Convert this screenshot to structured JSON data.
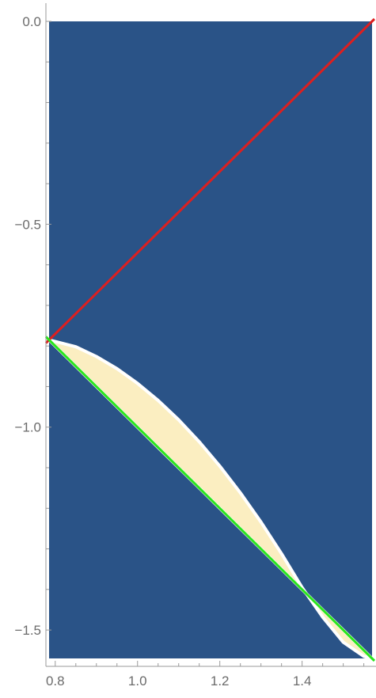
{
  "chart_data": {
    "type": "area",
    "title": "",
    "xlabel": "",
    "ylabel": "",
    "xlim": [
      0.785,
      1.57
    ],
    "ylim": [
      -1.57,
      0.0
    ],
    "x_ticks": [
      {
        "value": 0.8,
        "label": "0.8"
      },
      {
        "value": 1.0,
        "label": "1.0"
      },
      {
        "value": 1.2,
        "label": "1.2"
      },
      {
        "value": 1.4,
        "label": "1.4"
      }
    ],
    "y_ticks": [
      {
        "value": 0.0,
        "label": "0.0"
      },
      {
        "value": -0.5,
        "label": "−0.5"
      },
      {
        "value": -1.0,
        "label": "−1.0"
      },
      {
        "value": -1.5,
        "label": "−1.5"
      }
    ],
    "x_minor_step": 0.05,
    "y_minor_step": 0.1,
    "grid": false,
    "legend": "none",
    "colors": {
      "background_region": "#2a5387",
      "highlight_region": "#fbeec1",
      "region_edge": "#ffffff",
      "red_line": "#dd1f1f",
      "green_line": "#2ae51d"
    },
    "regions": [
      {
        "name": "",
        "x": [
          0.785,
          0.85,
          0.9,
          0.95,
          1.0,
          1.05,
          1.1,
          1.15,
          1.2,
          1.25,
          1.3,
          1.35,
          1.4,
          1.45,
          1.5,
          1.55,
          1.57
        ],
        "y_upper": [
          -0.785,
          -0.802,
          -0.826,
          -0.856,
          -0.892,
          -0.934,
          -0.982,
          -1.036,
          -1.096,
          -1.162,
          -1.234,
          -1.312,
          -1.395,
          -1.468,
          -1.53,
          -1.565,
          -1.57
        ],
        "y_lower": [
          -0.785,
          -0.85,
          -0.9,
          -0.95,
          -1.0,
          -1.05,
          -1.1,
          -1.15,
          -1.2,
          -1.25,
          -1.3,
          -1.35,
          -1.4,
          -1.45,
          -1.5,
          -1.55,
          -1.57
        ]
      }
    ],
    "series": [
      {
        "name": "",
        "color": "#dd1f1f",
        "x": [
          0.785,
          1.57
        ],
        "y": [
          -0.785,
          0.0
        ]
      },
      {
        "name": "",
        "color": "#2ae51d",
        "x": [
          0.785,
          1.57
        ],
        "y": [
          -0.785,
          -1.57
        ]
      }
    ]
  }
}
